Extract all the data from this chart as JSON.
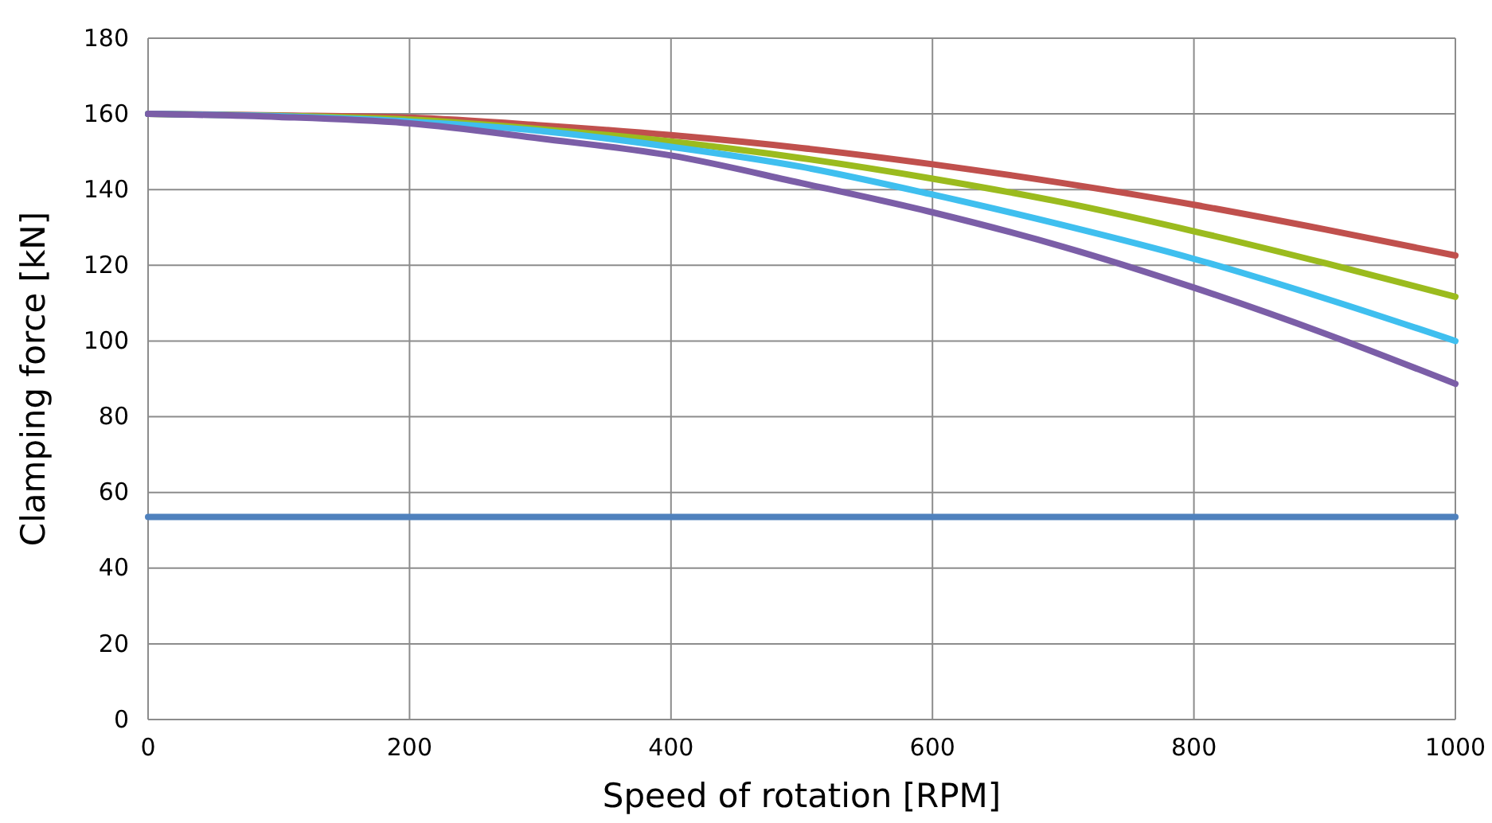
{
  "chart_data": {
    "type": "line",
    "xlabel": "Speed of rotation [RPM]",
    "ylabel": "Clamping force [kN]",
    "xlim": [
      0,
      1000
    ],
    "ylim": [
      0,
      180
    ],
    "xticks": [
      0,
      200,
      400,
      600,
      800,
      1000
    ],
    "yticks": [
      0,
      20,
      40,
      60,
      80,
      100,
      120,
      140,
      160,
      180
    ],
    "grid": true,
    "marker": "none",
    "line_style": "solid",
    "x": [
      0,
      100,
      200,
      300,
      400,
      500,
      600,
      700,
      800,
      900,
      1000
    ],
    "series": [
      {
        "color": "#4f81bd",
        "values": [
          53.5,
          53.5,
          53.5,
          53.5,
          53.5,
          53.5,
          53.5,
          53.5,
          53.5,
          53.5,
          53.5
        ]
      },
      {
        "color": "#c0504d",
        "values": [
          160,
          159.6,
          159,
          157,
          154.4,
          151,
          146.7,
          141.7,
          136,
          129.5,
          122.6
        ]
      },
      {
        "color": "#9bbb1e",
        "values": [
          160,
          159.5,
          158.5,
          156,
          152.7,
          148.3,
          142.9,
          136.6,
          129,
          120.6,
          111.7
        ]
      },
      {
        "color": "#3fbfef",
        "values": [
          160,
          159.4,
          158,
          155.5,
          151.3,
          146,
          138.7,
          130.6,
          121.7,
          111.3,
          100
        ]
      },
      {
        "color": "#7b5ea7",
        "values": [
          160,
          159.2,
          157.5,
          153.5,
          149,
          141.7,
          134,
          124.9,
          114.1,
          102,
          88.7
        ]
      }
    ]
  }
}
